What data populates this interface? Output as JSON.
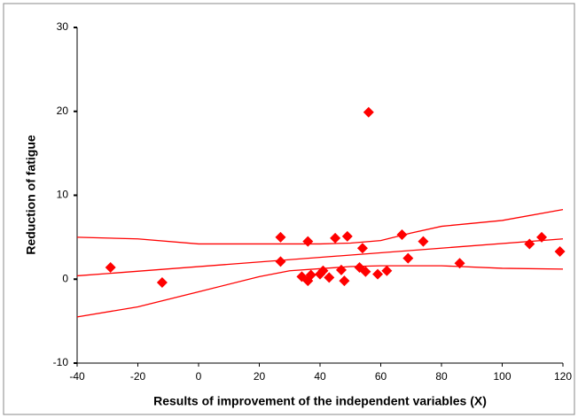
{
  "chart_data": {
    "type": "scatter",
    "x_label": "Results of improvement of the independent variables (X)",
    "y_label": "Reduction of fatigue",
    "xlim": [
      -40,
      120
    ],
    "xticks": [
      -40,
      -20,
      0,
      20,
      40,
      60,
      80,
      100,
      120
    ],
    "ylim": [
      -10,
      30
    ],
    "yticks": [
      -10,
      0,
      10,
      20,
      30
    ],
    "series": [
      {
        "type": "scatter",
        "color": "#ff0000",
        "x": [
          -29,
          -12,
          27,
          27,
          36,
          34,
          36,
          37,
          40,
          41,
          43,
          45,
          47,
          48,
          49,
          53,
          54,
          55,
          56,
          59,
          62,
          67,
          69,
          74,
          86,
          109,
          113,
          119
        ],
        "values": [
          1.4,
          -0.4,
          5.0,
          2.1,
          4.5,
          0.3,
          -0.2,
          0.5,
          0.6,
          1.0,
          0.2,
          4.9,
          1.1,
          -0.2,
          5.1,
          1.4,
          3.7,
          0.9,
          19.9,
          0.6,
          1.0,
          5.3,
          2.5,
          4.5,
          1.9,
          4.2,
          5.0,
          3.3
        ]
      },
      {
        "type": "line",
        "color": "#ff0000",
        "x": [
          -40,
          120
        ],
        "values": [
          0.4,
          4.8
        ]
      },
      {
        "type": "line",
        "color": "#ff0000",
        "x": [
          -40,
          -20,
          0,
          20,
          40,
          50,
          60,
          70,
          80,
          100,
          120
        ],
        "values": [
          5.0,
          4.8,
          4.2,
          4.2,
          4.2,
          4.3,
          4.6,
          5.5,
          6.3,
          7.0,
          8.3
        ]
      },
      {
        "type": "line",
        "color": "#ff0000",
        "x": [
          -40,
          -20,
          0,
          20,
          30,
          50,
          60,
          80,
          100,
          120
        ],
        "values": [
          -4.5,
          -3.3,
          -1.5,
          0.3,
          1.0,
          1.5,
          1.6,
          1.6,
          1.3,
          1.2
        ]
      }
    ]
  }
}
